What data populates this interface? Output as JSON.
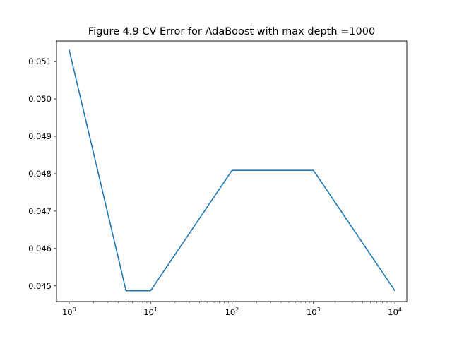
{
  "chart_data": {
    "type": "line",
    "title": "Figure 4.9 CV Error for AdaBoost with max depth =1000",
    "xlabel": "",
    "ylabel": "",
    "xscale": "log",
    "xlim": [
      0.7,
      14000
    ],
    "ylim": [
      0.04458,
      0.05155
    ],
    "x_ticks": [
      {
        "value": 1,
        "base": "10",
        "exp": "0"
      },
      {
        "value": 10,
        "base": "10",
        "exp": "1"
      },
      {
        "value": 100,
        "base": "10",
        "exp": "2"
      },
      {
        "value": 1000,
        "base": "10",
        "exp": "3"
      },
      {
        "value": 10000,
        "base": "10",
        "exp": "4"
      }
    ],
    "y_ticks": [
      {
        "value": 0.045,
        "label": "0.045"
      },
      {
        "value": 0.046,
        "label": "0.046"
      },
      {
        "value": 0.047,
        "label": "0.047"
      },
      {
        "value": 0.048,
        "label": "0.048"
      },
      {
        "value": 0.049,
        "label": "0.049"
      },
      {
        "value": 0.05,
        "label": "0.050"
      },
      {
        "value": 0.051,
        "label": "0.051"
      }
    ],
    "grid": false,
    "line_color": "#1f77b4",
    "series": [
      {
        "x": [
          1,
          5,
          10,
          100,
          1000,
          10000
        ],
        "values": [
          0.05132,
          0.04487,
          0.04487,
          0.04809,
          0.04809,
          0.04487
        ]
      }
    ]
  }
}
